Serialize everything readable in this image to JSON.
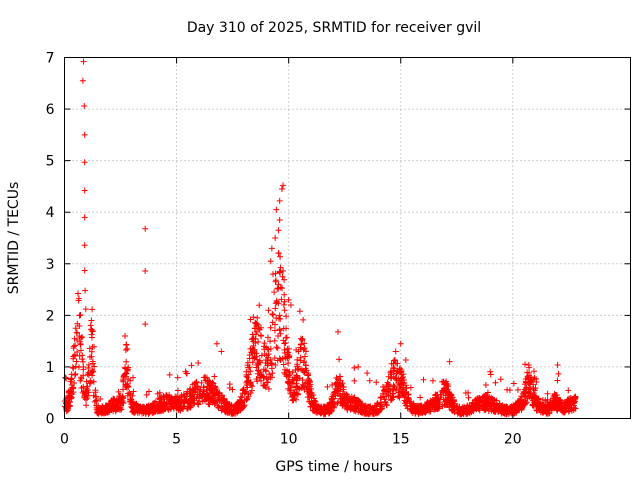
{
  "chart_data": {
    "type": "scatter",
    "title": "Day 310 of 2025, SRMTID for receiver gvil",
    "xlabel": "GPS time / hours",
    "ylabel": "SRMTID / TECUs",
    "xlim": [
      0,
      25.25
    ],
    "ylim": [
      0,
      7
    ],
    "xticks": [
      0,
      5,
      10,
      15,
      20
    ],
    "yticks": [
      0,
      1,
      2,
      3,
      4,
      5,
      6,
      7
    ],
    "grid": true,
    "marker": "plus",
    "color": "#ff0000",
    "series": [
      {
        "name": "SRMTID",
        "points": [
          [
            0.85,
            6.92
          ],
          [
            0.82,
            6.55
          ],
          [
            0.88,
            6.06
          ],
          [
            0.9,
            5.5
          ],
          [
            0.9,
            4.97
          ],
          [
            0.9,
            4.42
          ],
          [
            0.9,
            3.9
          ],
          [
            0.9,
            3.36
          ],
          [
            0.9,
            2.87
          ],
          [
            0.92,
            2.48
          ],
          [
            0.95,
            2.12
          ],
          [
            3.6,
            3.68
          ],
          [
            3.6,
            2.86
          ],
          [
            3.6,
            1.83
          ],
          [
            9.75,
            4.52
          ],
          [
            9.7,
            4.45
          ],
          [
            9.6,
            4.22
          ],
          [
            9.45,
            4.05
          ],
          [
            9.6,
            3.85
          ],
          [
            9.55,
            3.65
          ],
          [
            9.4,
            3.5
          ],
          [
            9.25,
            3.3
          ],
          [
            9.2,
            3.05
          ],
          [
            9.3,
            2.8
          ],
          [
            9.55,
            2.6
          ],
          [
            9.35,
            2.45
          ],
          [
            9.8,
            2.4
          ],
          [
            10.0,
            2.3
          ],
          [
            10.1,
            2.2
          ],
          [
            9.1,
            2.1
          ],
          [
            9.6,
            2.0
          ],
          [
            10.5,
            2.08
          ],
          [
            8.6,
            1.95
          ],
          [
            8.3,
            1.92
          ],
          [
            12.2,
            1.68
          ],
          [
            15.0,
            1.45
          ],
          [
            2.7,
            1.6
          ],
          [
            2.8,
            1.35
          ],
          [
            2.75,
            1.1
          ],
          [
            2.8,
            0.95
          ],
          [
            0.5,
            1.75
          ],
          [
            0.45,
            1.55
          ],
          [
            1.2,
            1.9
          ],
          [
            1.25,
            1.7
          ],
          [
            6.8,
            1.45
          ],
          [
            7.0,
            1.3
          ],
          [
            13.1,
            1.0
          ],
          [
            13.5,
            0.88
          ]
        ]
      }
    ]
  }
}
